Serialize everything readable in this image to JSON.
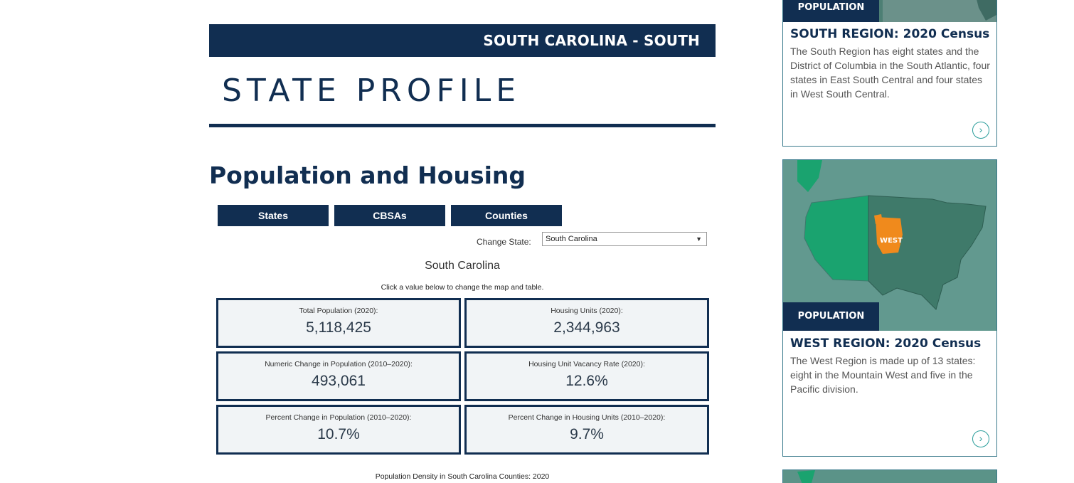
{
  "header": {
    "banner": "SOUTH CAROLINA - SOUTH",
    "title": "STATE PROFILE"
  },
  "section": {
    "title": "Population and Housing"
  },
  "tabs": [
    "States",
    "CBSAs",
    "Counties"
  ],
  "state_selector": {
    "label": "Change State:",
    "selected": "South Carolina"
  },
  "profile": {
    "state_name": "South Carolina",
    "hint": "Click a value below to change the map and table.",
    "stats": [
      {
        "label": "Total Population (2020):",
        "value": "5,118,425"
      },
      {
        "label": "Housing Units (2020):",
        "value": "2,344,963"
      },
      {
        "label": "Numeric Change in Population (2010–2020):",
        "value": "493,061"
      },
      {
        "label": "Housing Unit Vacancy Rate (2020):",
        "value": "12.6%"
      },
      {
        "label": "Percent Change in Population (2010–2020):",
        "value": "10.7%"
      },
      {
        "label": "Percent Change in Housing Units (2010–2020):",
        "value": "9.7%"
      }
    ],
    "density_caption": "Population Density in South Carolina Counties: 2020"
  },
  "sidebar": {
    "cards": [
      {
        "tag": "POPULATION",
        "title": "SOUTH REGION: 2020 Census",
        "description": "The South Region has eight states and the District of Columbia in the South Atlantic, four states in East South Central and four states in West South Central."
      },
      {
        "tag": "POPULATION",
        "title": "WEST REGION: 2020 Census",
        "description": "The West Region is made up of 13 states: eight in the Mountain West and five in the Pacific division.",
        "map_label": "WEST"
      }
    ]
  },
  "colors": {
    "navy": "#112e51",
    "teal": "#2a9d9b",
    "west_orange": "#f08a1c",
    "map_green": "#1aa36f"
  }
}
